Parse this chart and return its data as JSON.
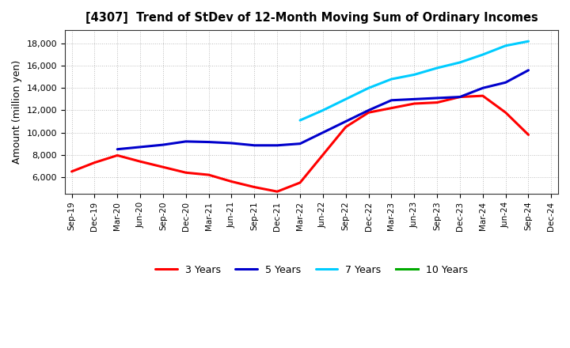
{
  "title": "[4307]  Trend of StDev of 12-Month Moving Sum of Ordinary Incomes",
  "ylabel": "Amount (million yen)",
  "background_color": "#ffffff",
  "plot_bg_color": "#ffffff",
  "grid_color": "#aaaaaa",
  "x_labels": [
    "Sep-19",
    "Dec-19",
    "Mar-20",
    "Jun-20",
    "Sep-20",
    "Dec-20",
    "Mar-21",
    "Jun-21",
    "Sep-21",
    "Dec-21",
    "Mar-22",
    "Jun-22",
    "Sep-22",
    "Dec-22",
    "Mar-23",
    "Jun-23",
    "Sep-23",
    "Dec-23",
    "Mar-24",
    "Jun-24",
    "Sep-24",
    "Dec-24"
  ],
  "series": [
    {
      "label": "3 Years",
      "color": "#ff0000",
      "values": [
        6500,
        7300,
        7950,
        7400,
        6900,
        6400,
        6200,
        5600,
        5100,
        4700,
        5500,
        8000,
        10500,
        11800,
        12200,
        12600,
        12700,
        13200,
        13300,
        11800,
        9800,
        null
      ]
    },
    {
      "label": "5 Years",
      "color": "#0000cc",
      "values": [
        null,
        null,
        8500,
        8700,
        8900,
        9200,
        9150,
        9050,
        8850,
        8850,
        9000,
        10000,
        11000,
        12000,
        12900,
        13000,
        13100,
        13200,
        14000,
        14500,
        15600,
        null
      ]
    },
    {
      "label": "7 Years",
      "color": "#00ccff",
      "values": [
        null,
        null,
        null,
        null,
        null,
        null,
        null,
        null,
        null,
        null,
        11100,
        12000,
        13000,
        14000,
        14800,
        15200,
        15800,
        16300,
        17000,
        17800,
        18200,
        null
      ]
    },
    {
      "label": "10 Years",
      "color": "#00aa00",
      "values": [
        null,
        null,
        null,
        null,
        null,
        null,
        null,
        null,
        null,
        null,
        null,
        null,
        null,
        null,
        null,
        null,
        null,
        null,
        null,
        null,
        null,
        null
      ]
    }
  ],
  "ylim": [
    4500,
    19200
  ],
  "yticks": [
    6000,
    8000,
    10000,
    12000,
    14000,
    16000,
    18000
  ],
  "ytick_labels": [
    "6,000",
    "8,000",
    "10,000",
    "12,000",
    "14,000",
    "16,000",
    "18,000"
  ]
}
